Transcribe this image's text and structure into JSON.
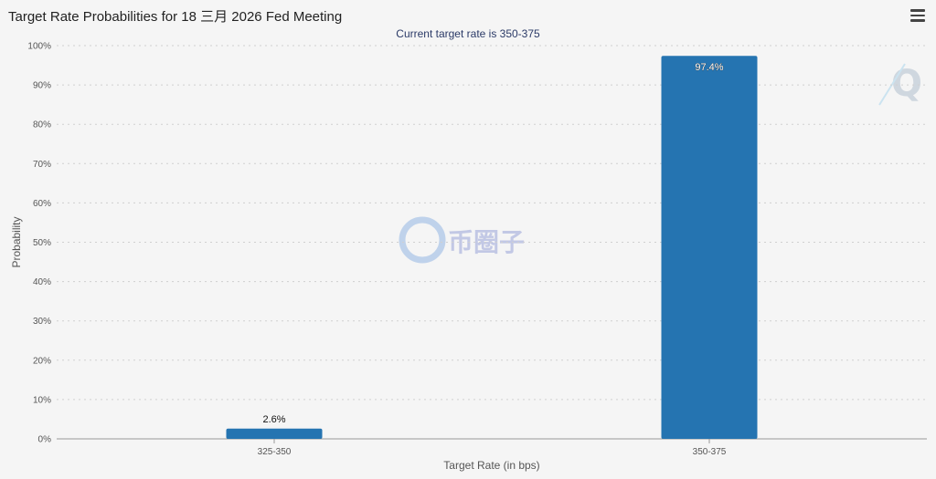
{
  "header": {
    "title": "Target Rate Probabilities for 18 三月 2026 Fed Meeting",
    "menu_icon": "hamburger-menu-icon"
  },
  "watermark": {
    "text": "币圈子",
    "corner_logo_letter": "Q"
  },
  "colors": {
    "bar": "#2574b1",
    "grid": "#d0d0d0",
    "subtitle": "#2b3a67"
  },
  "chart_data": {
    "type": "bar",
    "subtitle": "Current target rate is 350-375",
    "categories": [
      "325-350",
      "350-375"
    ],
    "values": [
      2.6,
      97.4
    ],
    "data_labels": [
      "2.6%",
      "97.4%"
    ],
    "xlabel": "Target Rate (in bps)",
    "ylabel": "Probability",
    "ylim": [
      0,
      100
    ],
    "yticks": [
      "0%",
      "10%",
      "20%",
      "30%",
      "40%",
      "50%",
      "60%",
      "70%",
      "80%",
      "90%",
      "100%"
    ],
    "grid": true,
    "legend": "none"
  }
}
